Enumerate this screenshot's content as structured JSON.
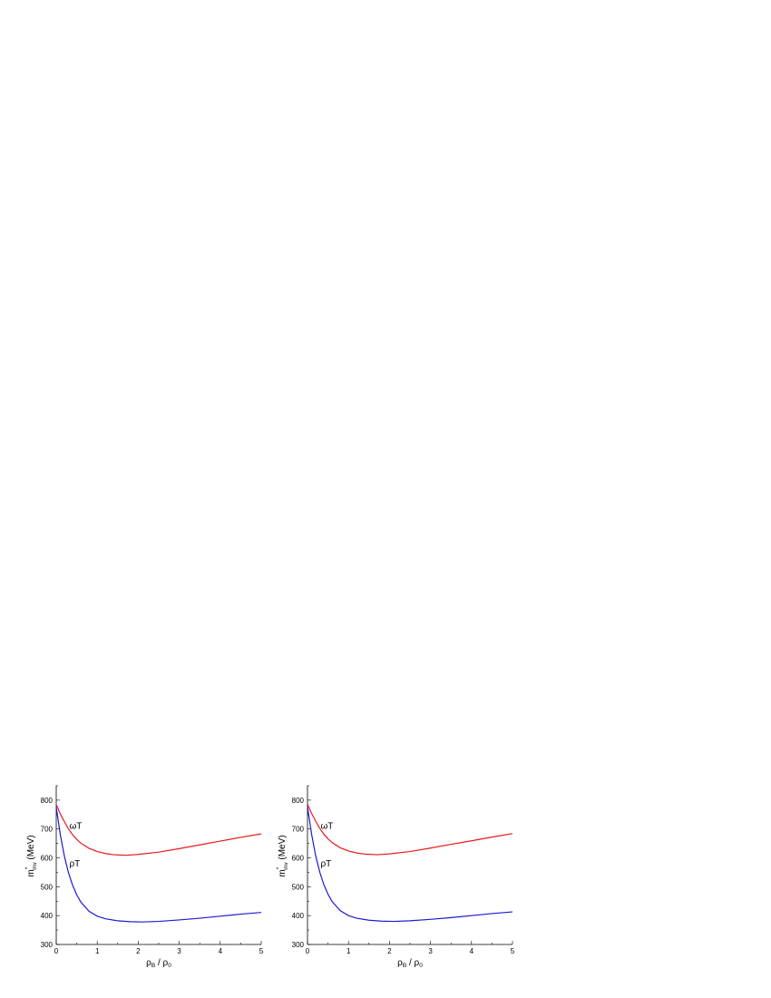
{
  "chart_data": [
    {
      "type": "line",
      "title": "",
      "xlabel": {
        "main": "ρ",
        "sub": "B",
        "mid": " / ρ",
        "sub2": "0"
      },
      "ylabel": {
        "main": "m",
        "sup": "*",
        "sub": "inv",
        "unit": " (MeV)"
      },
      "xlim": [
        0,
        5
      ],
      "ylim": [
        300,
        850
      ],
      "x_ticks": [
        0,
        1,
        2,
        3,
        4,
        5
      ],
      "y_ticks": [
        300,
        400,
        500,
        600,
        700,
        800
      ],
      "grid": false,
      "legend": "none",
      "series": [
        {
          "name": "ωT",
          "color": "#e8191b",
          "x": [
            0,
            0.1,
            0.2,
            0.3,
            0.4,
            0.5,
            0.6,
            0.8,
            1.0,
            1.2,
            1.4,
            1.7,
            2.0,
            2.5,
            3.0,
            3.5,
            4.0,
            4.5,
            5.0
          ],
          "y": [
            785,
            752,
            725,
            700,
            680,
            664,
            651,
            633,
            622,
            615,
            611,
            609,
            612,
            620,
            632,
            645,
            658,
            671,
            683
          ]
        },
        {
          "name": "ρT",
          "color": "#1b1bd4",
          "x": [
            0,
            0.1,
            0.2,
            0.3,
            0.4,
            0.5,
            0.6,
            0.8,
            1.0,
            1.2,
            1.5,
            1.8,
            2.1,
            2.5,
            3.0,
            3.5,
            4.0,
            4.5,
            5.0
          ],
          "y": [
            775,
            680,
            605,
            548,
            505,
            472,
            447,
            415,
            398,
            389,
            382,
            379,
            378,
            380,
            385,
            391,
            398,
            405,
            411
          ]
        }
      ]
    },
    {
      "type": "line",
      "title": "",
      "xlabel": {
        "main": "ρ",
        "sub": "B",
        "mid": " / ρ",
        "sub2": "0"
      },
      "ylabel": {
        "main": "m",
        "sup": "*",
        "sub": "inv",
        "unit": " (MeV)"
      },
      "xlim": [
        0,
        5
      ],
      "ylim": [
        300,
        850
      ],
      "x_ticks": [
        0,
        1,
        2,
        3,
        4,
        5
      ],
      "y_ticks": [
        300,
        400,
        500,
        600,
        700,
        800
      ],
      "grid": false,
      "legend": "none",
      "series": [
        {
          "name": "ωT",
          "color": "#e8191b",
          "x": [
            0,
            0.1,
            0.2,
            0.3,
            0.4,
            0.5,
            0.6,
            0.8,
            1.0,
            1.2,
            1.4,
            1.7,
            2.0,
            2.5,
            3.0,
            3.5,
            4.0,
            4.5,
            5.0
          ],
          "y": [
            787,
            754,
            727,
            702,
            682,
            666,
            653,
            635,
            624,
            617,
            613,
            611,
            614,
            622,
            634,
            647,
            659,
            672,
            684
          ]
        },
        {
          "name": "ρT",
          "color": "#1b1bd4",
          "x": [
            0,
            0.1,
            0.2,
            0.3,
            0.4,
            0.5,
            0.6,
            0.8,
            1.0,
            1.2,
            1.5,
            1.8,
            2.1,
            2.5,
            3.0,
            3.5,
            4.0,
            4.5,
            5.0
          ],
          "y": [
            777,
            682,
            607,
            550,
            507,
            474,
            449,
            417,
            400,
            391,
            384,
            381,
            380,
            382,
            387,
            393,
            400,
            407,
            413
          ]
        }
      ]
    }
  ]
}
